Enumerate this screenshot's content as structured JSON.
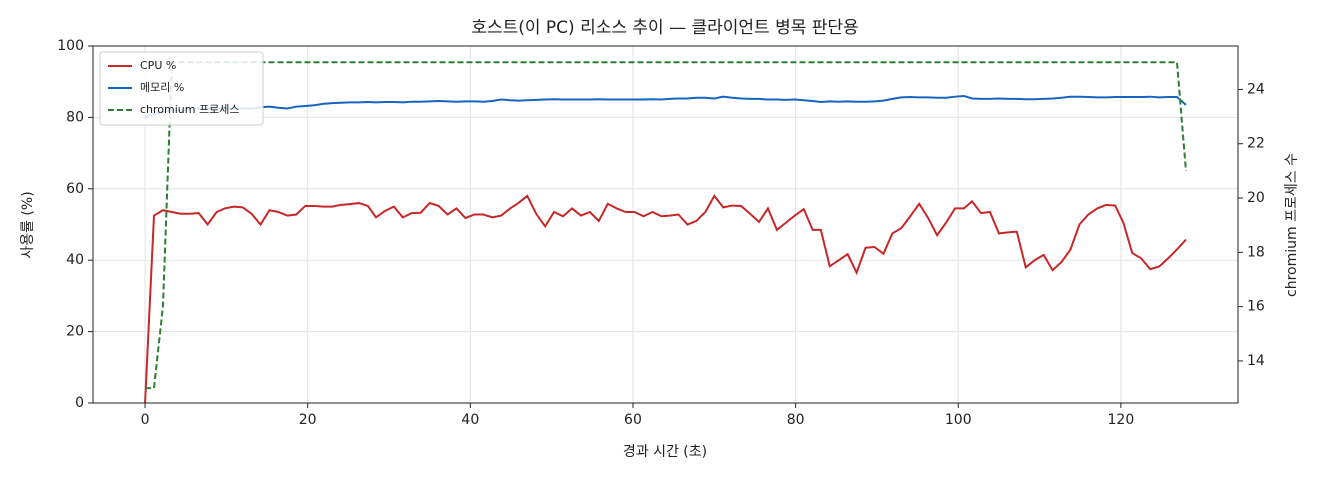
{
  "chart_data": {
    "type": "line",
    "title": "호스트(이 PC) 리소스 추이 — 클라이언트 병목 판단용",
    "x_label": "경과 시간 (초)",
    "y_label": "사용률 (%)",
    "y2_label": "chromium 프로세스 수",
    "x": [
      0,
      1.1,
      2.2,
      3.3,
      4.4,
      5.5,
      6.6,
      7.7,
      8.8,
      9.8,
      10.9,
      12.0,
      13.1,
      14.2,
      15.3,
      16.4,
      17.5,
      18.6,
      19.7,
      20.8,
      21.9,
      23.0,
      24.1,
      25.2,
      26.3,
      27.4,
      28.4,
      29.5,
      30.6,
      31.7,
      32.8,
      33.9,
      35.0,
      36.1,
      37.2,
      38.3,
      39.4,
      40.5,
      41.6,
      42.7,
      43.8,
      44.9,
      45.9,
      47.0,
      48.1,
      49.2,
      50.3,
      51.4,
      52.5,
      53.6,
      54.7,
      55.8,
      56.9,
      58.0,
      59.1,
      60.2,
      61.3,
      62.4,
      63.5,
      64.5,
      65.6,
      66.7,
      67.8,
      68.9,
      70.0,
      71.1,
      72.2,
      73.3,
      74.4,
      75.5,
      76.6,
      77.7,
      78.8,
      79.9,
      81.0,
      82.1,
      83.1,
      84.2,
      85.3,
      86.4,
      87.5,
      88.6,
      89.7,
      90.8,
      91.9,
      93.0,
      94.1,
      95.2,
      96.3,
      97.4,
      98.5,
      99.6,
      100.7,
      101.7,
      102.8,
      103.9,
      105.0,
      106.1,
      107.2,
      108.3,
      109.4,
      110.5,
      111.6,
      112.7,
      113.8,
      114.9,
      116.0,
      117.1,
      118.2,
      119.3,
      120.3,
      121.4,
      122.5,
      123.6,
      124.7,
      125.8,
      126.9,
      128.0
    ],
    "series": [
      {
        "name": "CPU %",
        "color": "#c62828",
        "linestyle": "solid",
        "values": [
          0,
          52.5,
          54,
          53.5,
          53,
          53,
          53.2,
          50,
          53.5,
          54.5,
          55,
          54.8,
          53,
          50,
          54,
          53.5,
          52.5,
          52.8,
          55.2,
          55.2,
          55,
          55,
          55.5,
          55.7,
          56,
          55.2,
          52,
          53.8,
          55,
          52,
          53.2,
          53.3,
          56,
          55.2,
          52.8,
          54.5,
          51.8,
          52.8,
          52.8,
          52,
          52.5,
          54.5,
          56,
          58,
          53,
          49.5,
          53.5,
          52.3,
          54.5,
          52.5,
          53.5,
          51,
          55.8,
          54.5,
          53.5,
          53.5,
          52.3,
          53.5,
          52.3,
          52.5,
          52.8,
          50,
          51,
          53.5,
          58,
          54.8,
          55.3,
          55.2,
          53,
          50.7,
          54.5,
          48.5,
          50.5,
          52.5,
          54.3,
          48.5,
          48.5,
          38.3,
          40,
          41.7,
          36.5,
          43.5,
          43.7,
          41.8,
          47.5,
          49,
          52.3,
          55.8,
          51.8,
          47,
          50.5,
          54.5,
          54.5,
          56.5,
          53.2,
          53.5,
          47.5,
          47.8,
          48,
          38,
          40,
          41.5,
          37.2,
          39.5,
          43,
          50,
          52.8,
          54.5,
          55.5,
          55.3,
          50.5,
          42,
          40.5,
          37.5,
          38.2,
          40.5,
          43,
          45.8
        ]
      },
      {
        "name": "메모리 %",
        "color": "#1565c0",
        "linestyle": "solid",
        "values": [
          80,
          81,
          81.5,
          82,
          82,
          82.5,
          82.5,
          82.5,
          82.5,
          82.5,
          82.5,
          82.5,
          82.5,
          82.8,
          83,
          82.7,
          82.5,
          83,
          83.2,
          83.4,
          83.8,
          84,
          84.1,
          84.2,
          84.2,
          84.3,
          84.2,
          84.3,
          84.3,
          84.2,
          84.4,
          84.4,
          84.5,
          84.6,
          84.5,
          84.4,
          84.5,
          84.5,
          84.4,
          84.6,
          85,
          84.8,
          84.7,
          84.8,
          84.9,
          85,
          85.1,
          85,
          85,
          85,
          85,
          85.1,
          85,
          85,
          85,
          85,
          85,
          85.1,
          85,
          85.2,
          85.3,
          85.3,
          85.5,
          85.5,
          85.3,
          85.8,
          85.5,
          85.3,
          85.2,
          85.2,
          85,
          85,
          84.9,
          85,
          84.8,
          84.6,
          84.3,
          84.5,
          84.4,
          84.5,
          84.4,
          84.4,
          84.5,
          84.7,
          85.2,
          85.6,
          85.7,
          85.6,
          85.6,
          85.5,
          85.5,
          85.8,
          86,
          85.3,
          85.2,
          85.2,
          85.3,
          85.2,
          85.2,
          85.1,
          85.1,
          85.2,
          85.3,
          85.5,
          85.8,
          85.8,
          85.7,
          85.6,
          85.6,
          85.7,
          85.7,
          85.7,
          85.7,
          85.8,
          85.6,
          85.7,
          85.7,
          83.5
        ]
      },
      {
        "name": "chromium 프로세스",
        "color": "#2e7d32",
        "linestyle": "dashed",
        "axis": "y2",
        "values": [
          13,
          13,
          16,
          25,
          25,
          25,
          25,
          25,
          25,
          25,
          25,
          25,
          25,
          25,
          25,
          25,
          25,
          25,
          25,
          25,
          25,
          25,
          25,
          25,
          25,
          25,
          25,
          25,
          25,
          25,
          25,
          25,
          25,
          25,
          25,
          25,
          25,
          25,
          25,
          25,
          25,
          25,
          25,
          25,
          25,
          25,
          25,
          25,
          25,
          25,
          25,
          25,
          25,
          25,
          25,
          25,
          25,
          25,
          25,
          25,
          25,
          25,
          25,
          25,
          25,
          25,
          25,
          25,
          25,
          25,
          25,
          25,
          25,
          25,
          25,
          25,
          25,
          25,
          25,
          25,
          25,
          25,
          25,
          25,
          25,
          25,
          25,
          25,
          25,
          25,
          25,
          25,
          25,
          25,
          25,
          25,
          25,
          25,
          25,
          25,
          25,
          25,
          25,
          25,
          25,
          25,
          25,
          25,
          25,
          25,
          25,
          25,
          25,
          25,
          25,
          25,
          25,
          21
        ]
      }
    ],
    "xlim": [
      -6.4,
      134.4
    ],
    "xticks": [
      0,
      20,
      40,
      60,
      80,
      100,
      120
    ],
    "ylim": [
      0,
      100
    ],
    "yticks": [
      0,
      20,
      40,
      60,
      80,
      100
    ],
    "y2lim": [
      12.45,
      25.6
    ],
    "y2ticks": [
      14,
      16,
      18,
      20,
      22,
      24
    ],
    "grid": true,
    "legend": "upper-left"
  }
}
